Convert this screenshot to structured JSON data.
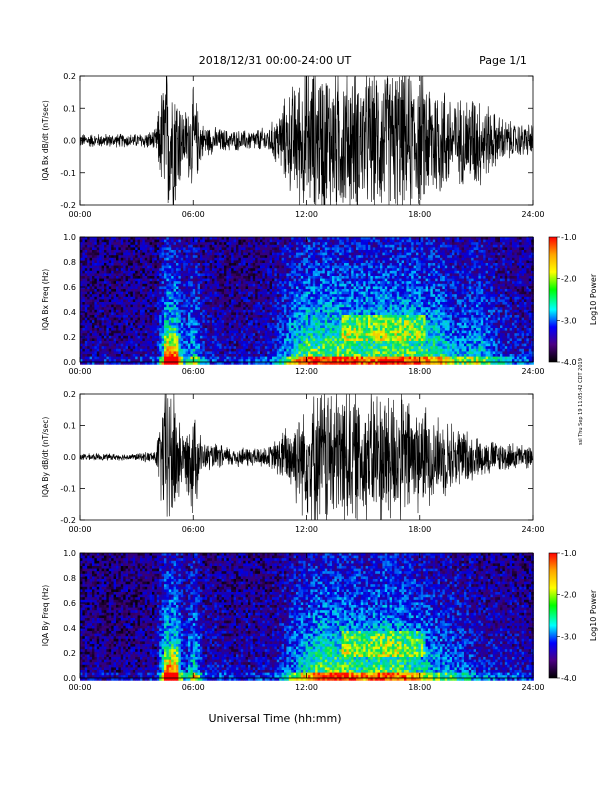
{
  "header": {
    "title": "2018/12/31   00:00-24:00 UT",
    "page": "Page 1/1"
  },
  "side_stamp": "ssl Thu Sep 19 11:05:42 CDT 2019",
  "footer": {
    "xlabel": "Universal Time (hh:mm)"
  },
  "colorbar": {
    "label": "Log10 Power",
    "ticks": [
      "-1.0",
      "-2.0",
      "-3.0",
      "-4.0"
    ],
    "colors": [
      "#ff0000",
      "#ffa500",
      "#ffff00",
      "#00ff00",
      "#00ffff",
      "#0000ff",
      "#4b0082",
      "#000000"
    ]
  },
  "chart_data": [
    {
      "type": "line",
      "ylabel": "IQA Bx dB/dt (nT/sec)",
      "x_ticks": [
        "00:00",
        "06:00",
        "12:00",
        "18:00",
        "24:00"
      ],
      "y_ticks": [
        "0.2",
        "0.1",
        "0.0",
        "-0.1",
        "-0.2"
      ],
      "ylim": [
        -0.2,
        0.2
      ],
      "xlim": [
        0,
        24
      ],
      "amplitude_envelope": {
        "x": [
          0,
          1,
          2,
          3,
          4,
          4.5,
          5,
          5.5,
          6,
          6.5,
          7,
          8,
          9,
          10,
          10.5,
          11,
          12,
          13,
          13.5,
          14,
          15,
          16,
          17,
          18,
          19,
          20,
          21,
          22,
          23,
          24
        ],
        "amplitude": [
          0.02,
          0.02,
          0.02,
          0.02,
          0.03,
          0.22,
          0.22,
          0.08,
          0.15,
          0.05,
          0.04,
          0.03,
          0.03,
          0.04,
          0.08,
          0.14,
          0.22,
          0.22,
          0.22,
          0.22,
          0.2,
          0.22,
          0.22,
          0.2,
          0.18,
          0.12,
          0.15,
          0.08,
          0.05,
          0.05
        ]
      }
    },
    {
      "type": "heatmap",
      "ylabel": "IQA Bx Freq (Hz)",
      "x_ticks": [
        "00:00",
        "06:00",
        "12:00",
        "18:00",
        "24:00"
      ],
      "y_ticks": [
        "1.0",
        "0.8",
        "0.6",
        "0.4",
        "0.2",
        "0.0"
      ],
      "ylim": [
        0,
        1.0
      ],
      "xlim": [
        0,
        24
      ],
      "colorbar_range": [
        -4.0,
        -1.0
      ]
    },
    {
      "type": "line",
      "ylabel": "IQA By dB/dt (nT/sec)",
      "x_ticks": [
        "00:00",
        "06:00",
        "12:00",
        "18:00",
        "24:00"
      ],
      "y_ticks": [
        "0.2",
        "0.1",
        "0.0",
        "-0.1",
        "-0.2"
      ],
      "ylim": [
        -0.2,
        0.2
      ],
      "xlim": [
        0,
        24
      ],
      "amplitude_envelope": {
        "x": [
          0,
          1,
          2,
          3,
          4,
          4.5,
          5,
          5.5,
          6,
          6.5,
          7,
          8,
          9,
          10,
          10.5,
          11,
          12,
          13,
          13.5,
          14,
          15,
          16,
          17,
          18,
          19,
          20,
          21,
          22,
          23,
          24
        ],
        "amplitude": [
          0.01,
          0.01,
          0.01,
          0.01,
          0.02,
          0.22,
          0.22,
          0.06,
          0.18,
          0.04,
          0.04,
          0.03,
          0.03,
          0.03,
          0.06,
          0.1,
          0.18,
          0.22,
          0.22,
          0.22,
          0.18,
          0.22,
          0.2,
          0.16,
          0.12,
          0.1,
          0.06,
          0.05,
          0.04,
          0.03
        ]
      }
    },
    {
      "type": "heatmap",
      "ylabel": "IQA By Freq (Hz)",
      "x_ticks": [
        "00:00",
        "06:00",
        "12:00",
        "18:00",
        "24:00"
      ],
      "y_ticks": [
        "1.0",
        "0.8",
        "0.6",
        "0.4",
        "0.2",
        "0.0"
      ],
      "ylim": [
        0,
        1.0
      ],
      "xlim": [
        0,
        24
      ],
      "colorbar_range": [
        -4.0,
        -1.0
      ]
    }
  ]
}
